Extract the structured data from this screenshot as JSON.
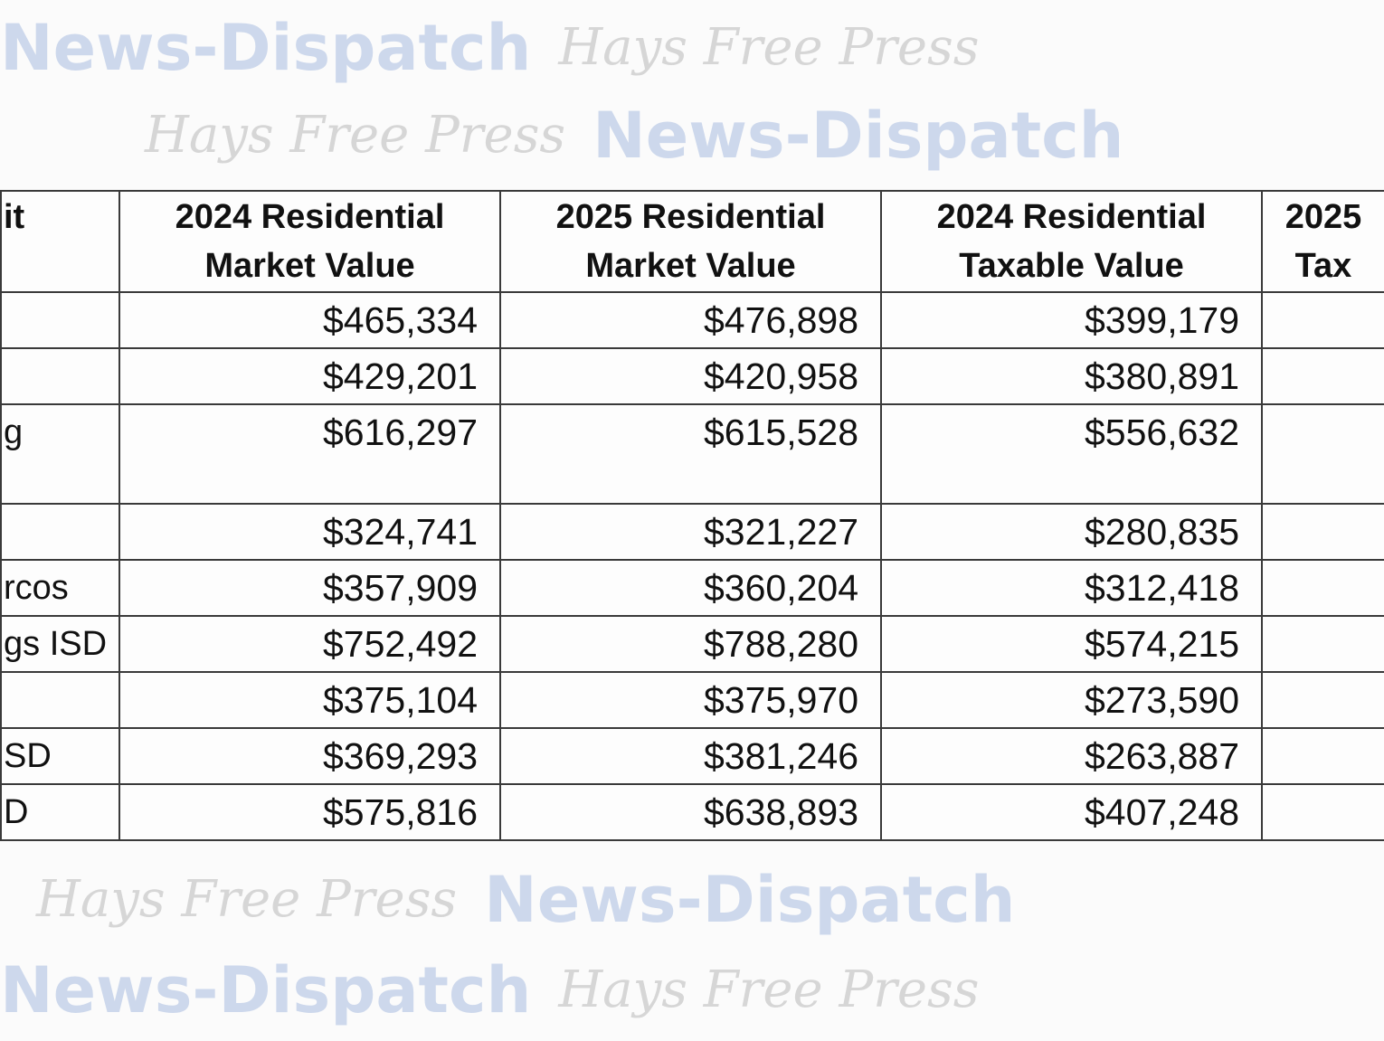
{
  "watermark": {
    "line_a": "News-Dispatch",
    "line_b": "Hays Free Press",
    "color_a": "#cdd8ec",
    "color_b": "#dcdcdc"
  },
  "table": {
    "headers": [
      {
        "line1": "it",
        "line2": ""
      },
      {
        "line1": "2024 Residential",
        "line2": "Market Value"
      },
      {
        "line1": "2025 Residential",
        "line2": "Market Value"
      },
      {
        "line1": "2024 Residential",
        "line2": "Taxable Value"
      },
      {
        "line1": "2025",
        "line2": "Tax"
      }
    ],
    "rows": [
      {
        "name": "",
        "v2024m": "$465,334",
        "v2025m": "$476,898",
        "v2024t": "$399,179",
        "v2025t": ""
      },
      {
        "name": "",
        "v2024m": "$429,201",
        "v2025m": "$420,958",
        "v2024t": "$380,891",
        "v2025t": ""
      },
      {
        "name": "g",
        "v2024m": "$616,297",
        "v2025m": "$615,528",
        "v2024t": "$556,632",
        "v2025t": ""
      },
      {
        "name": "",
        "v2024m": "$324,741",
        "v2025m": "$321,227",
        "v2024t": "$280,835",
        "v2025t": ""
      },
      {
        "name": "rcos",
        "v2024m": "$357,909",
        "v2025m": "$360,204",
        "v2024t": "$312,418",
        "v2025t": ""
      },
      {
        "name": "gs ISD",
        "v2024m": "$752,492",
        "v2025m": "$788,280",
        "v2024t": "$574,215",
        "v2025t": ""
      },
      {
        "name": "",
        "v2024m": "$375,104",
        "v2025m": "$375,970",
        "v2024t": "$273,590",
        "v2025t": ""
      },
      {
        "name": "SD",
        "v2024m": "$369,293",
        "v2025m": "$381,246",
        "v2024t": "$263,887",
        "v2025t": ""
      },
      {
        "name": "D",
        "v2024m": "$575,816",
        "v2025m": "$638,893",
        "v2024t": "$407,248",
        "v2025t": ""
      }
    ]
  }
}
